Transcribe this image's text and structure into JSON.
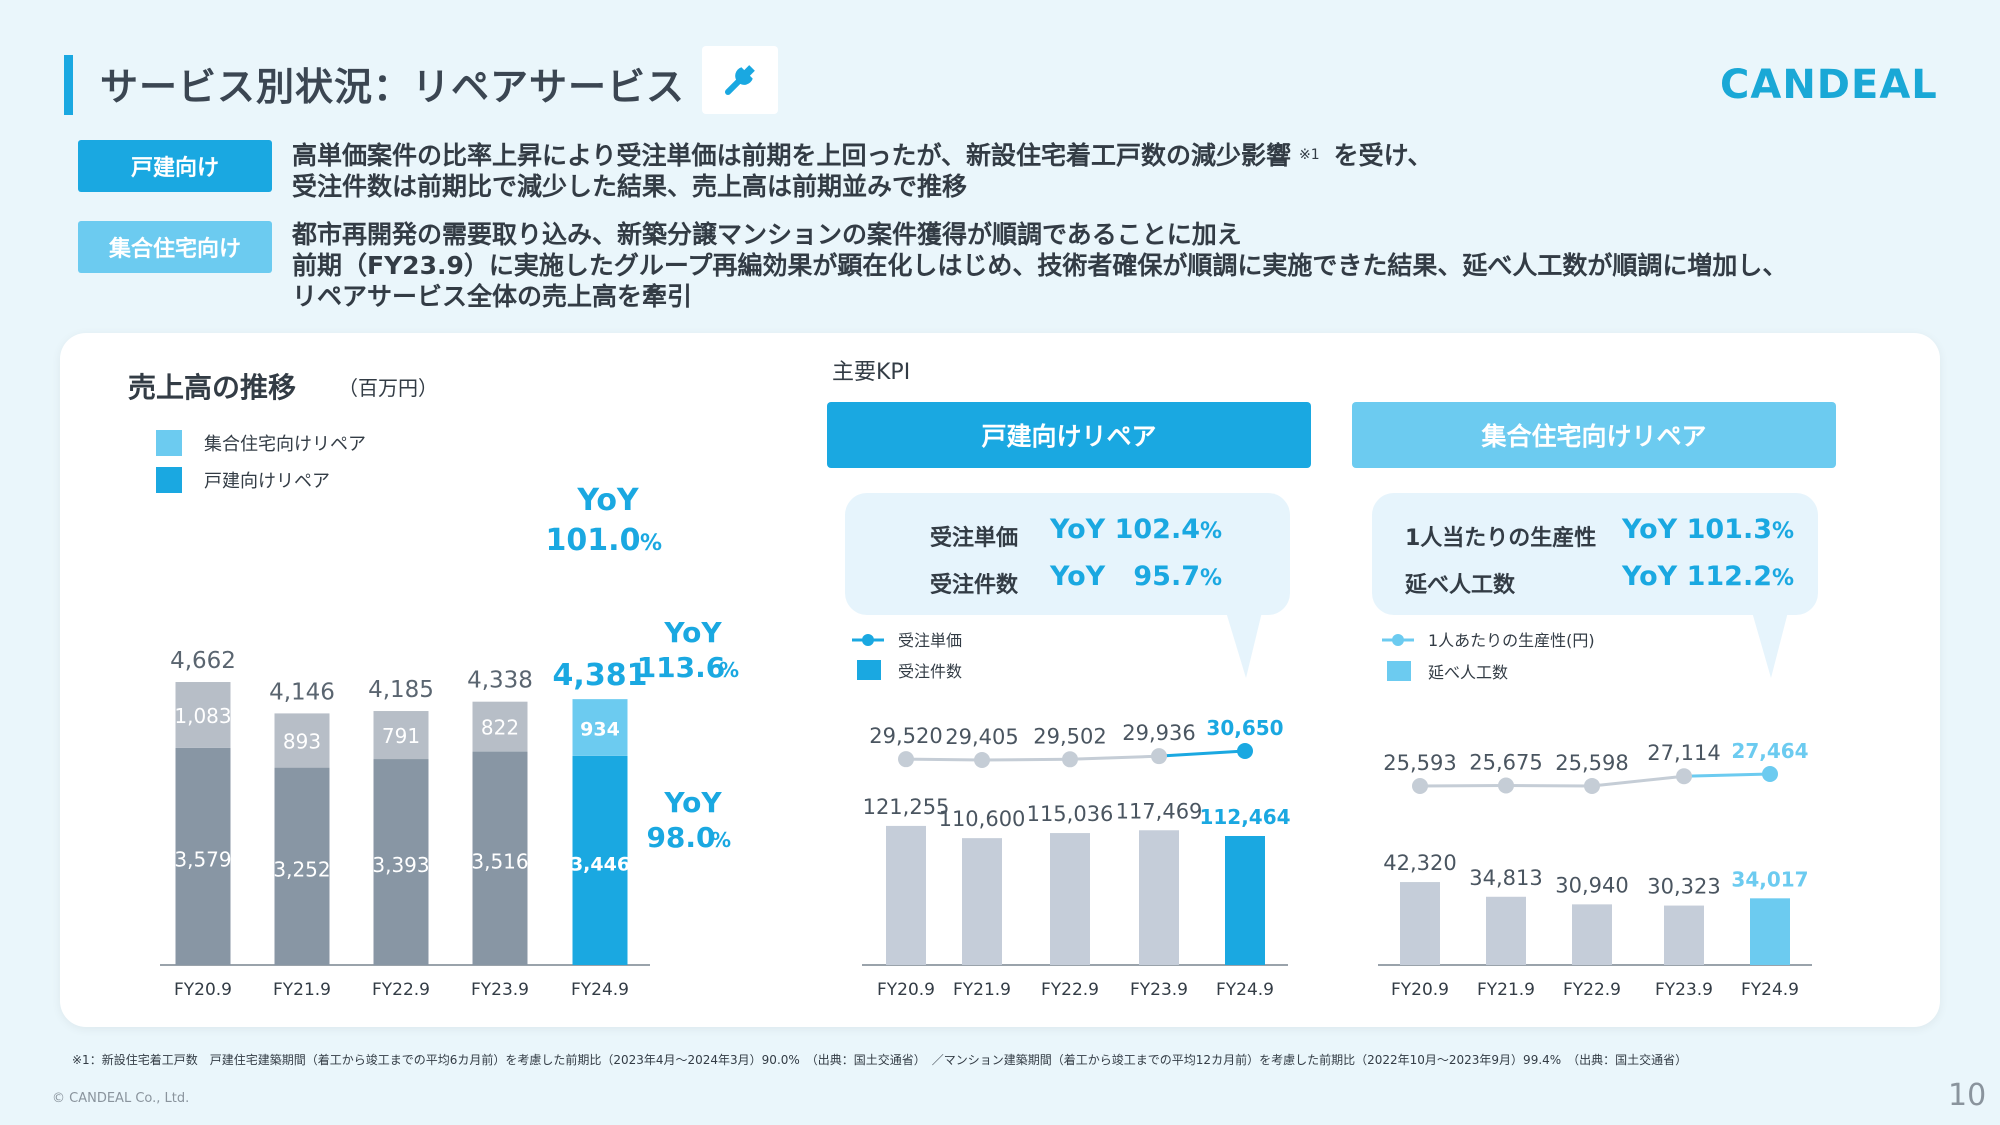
{
  "header": {
    "title": "サービス別状況：リペアサービス",
    "logo": "CANDEAL",
    "icon": "wrench-icon",
    "accent_color": "#1aa8e1",
    "light_accent_color": "#6ccbf0"
  },
  "summary": {
    "detached": {
      "tag": "戸建向け",
      "line1a": "高単価案件の比率上昇により受注単価は前期を上回ったが、新設住宅着工戸数の減少影響",
      "note": "※1",
      "line1b": "を受け、",
      "line2": "受注件数は前期比で減少した結果、売上高は前期並みで推移"
    },
    "multi": {
      "tag": "集合住宅向け",
      "line1": "都市再開発の需要取り込み、新築分譲マンションの案件獲得が順調であることに加え",
      "line2": "前期（FY23.9）に実施したグループ再編効果が顕在化しはじめ、技術者確保が順調に実施できた結果、延べ人工数が順調に増加し、",
      "line3": "リペアサービス全体の売上高を牽引"
    }
  },
  "left_chart": {
    "title": "売上高の推移",
    "unit": "（百万円）",
    "legend": {
      "multi": "集合住宅向けリペア",
      "detached": "戸建向けリペア"
    },
    "yoy_total": {
      "label": "YoY",
      "value": "101.0",
      "pct": "%"
    },
    "yoy_multi": {
      "label": "YoY",
      "value": "113.6",
      "pct": "%"
    },
    "yoy_detached": {
      "label": "YoY",
      "value": "98.0",
      "pct": "%"
    }
  },
  "kpi": {
    "label": "主要KPI",
    "detached": {
      "header": "戸建向けリペア",
      "row1_label": "受注単価",
      "row1_yoy": "YoY",
      "row1_value": "102.4",
      "row1_pct": "%",
      "row2_label": "受注件数",
      "row2_yoy": "YoY",
      "row2_value": "95.7",
      "row2_pct": "%",
      "legend_line": "受注単価",
      "legend_bar": "受注件数"
    },
    "multi": {
      "header": "集合住宅向けリペア",
      "row1_label": "1人当たりの生産性",
      "row1_yoy": "YoY",
      "row1_value": "101.3",
      "row1_pct": "%",
      "row2_label": "延べ人工数",
      "row2_yoy": "YoY",
      "row2_value": "112.2",
      "row2_pct": "%",
      "legend_line": "1人あたりの生産性(円)",
      "legend_bar": "延べ人工数"
    }
  },
  "chart_data": [
    {
      "type": "bar",
      "title": "売上高の推移",
      "unit": "百万円",
      "stacked": true,
      "categories": [
        "FY20.9",
        "FY21.9",
        "FY22.9",
        "FY23.9",
        "FY24.9"
      ],
      "series": [
        {
          "name": "戸建向けリペア",
          "values": [
            3579,
            3252,
            3393,
            3516,
            3446
          ],
          "labels": [
            "3,579",
            "3,252",
            "3,393",
            "3,516",
            "3,446"
          ]
        },
        {
          "name": "集合住宅向けリペア",
          "values": [
            1083,
            893,
            791,
            822,
            934
          ],
          "labels": [
            "1,083",
            "893",
            "791",
            "822",
            "934"
          ]
        }
      ],
      "totals": [
        4662,
        4146,
        4185,
        4338,
        4381
      ],
      "total_labels": [
        "4,662",
        "4,146",
        "4,185",
        "4,338",
        "4,381"
      ],
      "ylim": [
        0,
        5000
      ]
    },
    {
      "type": "bar",
      "title": "戸建向けリペア",
      "categories": [
        "FY20.9",
        "FY21.9",
        "FY22.9",
        "FY23.9",
        "FY24.9"
      ],
      "series": [
        {
          "name": "受注単価",
          "kind": "line",
          "values": [
            29520,
            29405,
            29502,
            29936,
            30650
          ],
          "labels": [
            "29,520",
            "29,405",
            "29,502",
            "29,936",
            "30,650"
          ]
        },
        {
          "name": "受注件数",
          "kind": "bar",
          "values": [
            121255,
            110600,
            115036,
            117469,
            112464
          ],
          "labels": [
            "121,255",
            "110,600",
            "115,036",
            "117,469",
            "112,464"
          ]
        }
      ]
    },
    {
      "type": "bar",
      "title": "集合住宅向けリペア",
      "categories": [
        "FY20.9",
        "FY21.9",
        "FY22.9",
        "FY23.9",
        "FY24.9"
      ],
      "series": [
        {
          "name": "1人あたりの生産性(円)",
          "kind": "line",
          "values": [
            25593,
            25675,
            25598,
            27114,
            27464
          ],
          "labels": [
            "25,593",
            "25,675",
            "25,598",
            "27,114",
            "27,464"
          ]
        },
        {
          "name": "延べ人工数",
          "kind": "bar",
          "values": [
            42320,
            34813,
            30940,
            30323,
            34017
          ],
          "labels": [
            "42,320",
            "34,813",
            "30,940",
            "30,323",
            "34,017"
          ]
        }
      ]
    }
  ],
  "footer": {
    "footnote": "※1：新設住宅着工戸数　戸建住宅建築期間（着工から竣工までの平均6カ月前）を考慮した前期比（2023年4月〜2024年3月）90.0%　（出典：国土交通省）　／マンション建築期間（着工から竣工までの平均12カ月前）を考慮した前期比（2022年10月〜2023年9月）99.4%　（出典：国土交通省）",
    "copyright": "© CANDEAL Co., Ltd.",
    "page": "10"
  }
}
